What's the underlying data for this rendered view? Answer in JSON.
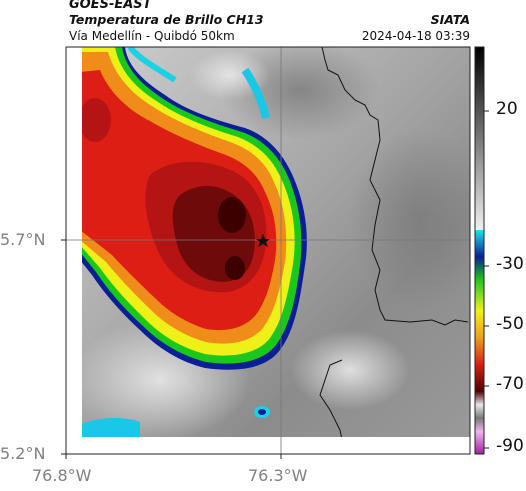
{
  "header": {
    "satellite": "GOES-EAST",
    "product": "Temperatura de Brillo CH13",
    "region": "Vía Medellín - Quibdó 50km",
    "source": "SIATA",
    "timestamp": "2024-04-18 03:39"
  },
  "axes": {
    "y_ticks": [
      "5.7°N",
      "5.2°N"
    ],
    "x_ticks": [
      "76.8°W",
      "76.3°W"
    ]
  },
  "colorbar": {
    "ticks": [
      "20",
      "-30",
      "-50",
      "-70",
      "-90"
    ],
    "colors": {
      "gray_top": "#1a1a1a",
      "gray_bottom": "#e6e6e6",
      "cyan": "#19d2e6",
      "blue": "#0a1e96",
      "green": "#19c819",
      "yellow": "#f0f019",
      "orange": "#f08c19",
      "red": "#dc1e14",
      "dark_red": "#500000",
      "magenta": "#c83cc8"
    }
  },
  "map": {
    "marker_icon": "star-icon"
  }
}
